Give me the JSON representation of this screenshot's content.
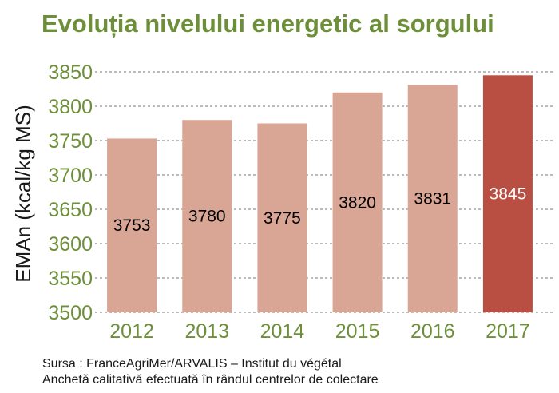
{
  "title": "Evoluția nivelului energetic al sorgului",
  "footer": {
    "source": "Sursa : FranceAgriMer/ARVALIS – Institut du végétal",
    "note": "Anchetă calitativă efectuată în rândul centrelor de colectare"
  },
  "colors": {
    "title": "#6e8f3a",
    "bar": "#d9a695",
    "highlight_bar": "#b84f42",
    "highlight_label": "#ffffff",
    "label": "#000000",
    "grid": "#777777",
    "tick": "#6e8f3a"
  },
  "chart_data": {
    "type": "bar",
    "title": "Evoluția nivelului energetic al sorgului",
    "xlabel": "",
    "ylabel": "EMAn (kcal/kg MS)",
    "categories": [
      "2012",
      "2013",
      "2014",
      "2015",
      "2016",
      "2017"
    ],
    "values": [
      3753,
      3780,
      3775,
      3820,
      3831,
      3845
    ],
    "data_labels": [
      "3753",
      "3780",
      "3775",
      "3820",
      "3831",
      "3845"
    ],
    "highlight_index": 5,
    "ylim": [
      3500,
      3850
    ],
    "yticks": [
      3500,
      3550,
      3600,
      3650,
      3700,
      3750,
      3800,
      3850
    ],
    "grid": true,
    "grid_style": "dashed horizontal",
    "legend": "none"
  }
}
